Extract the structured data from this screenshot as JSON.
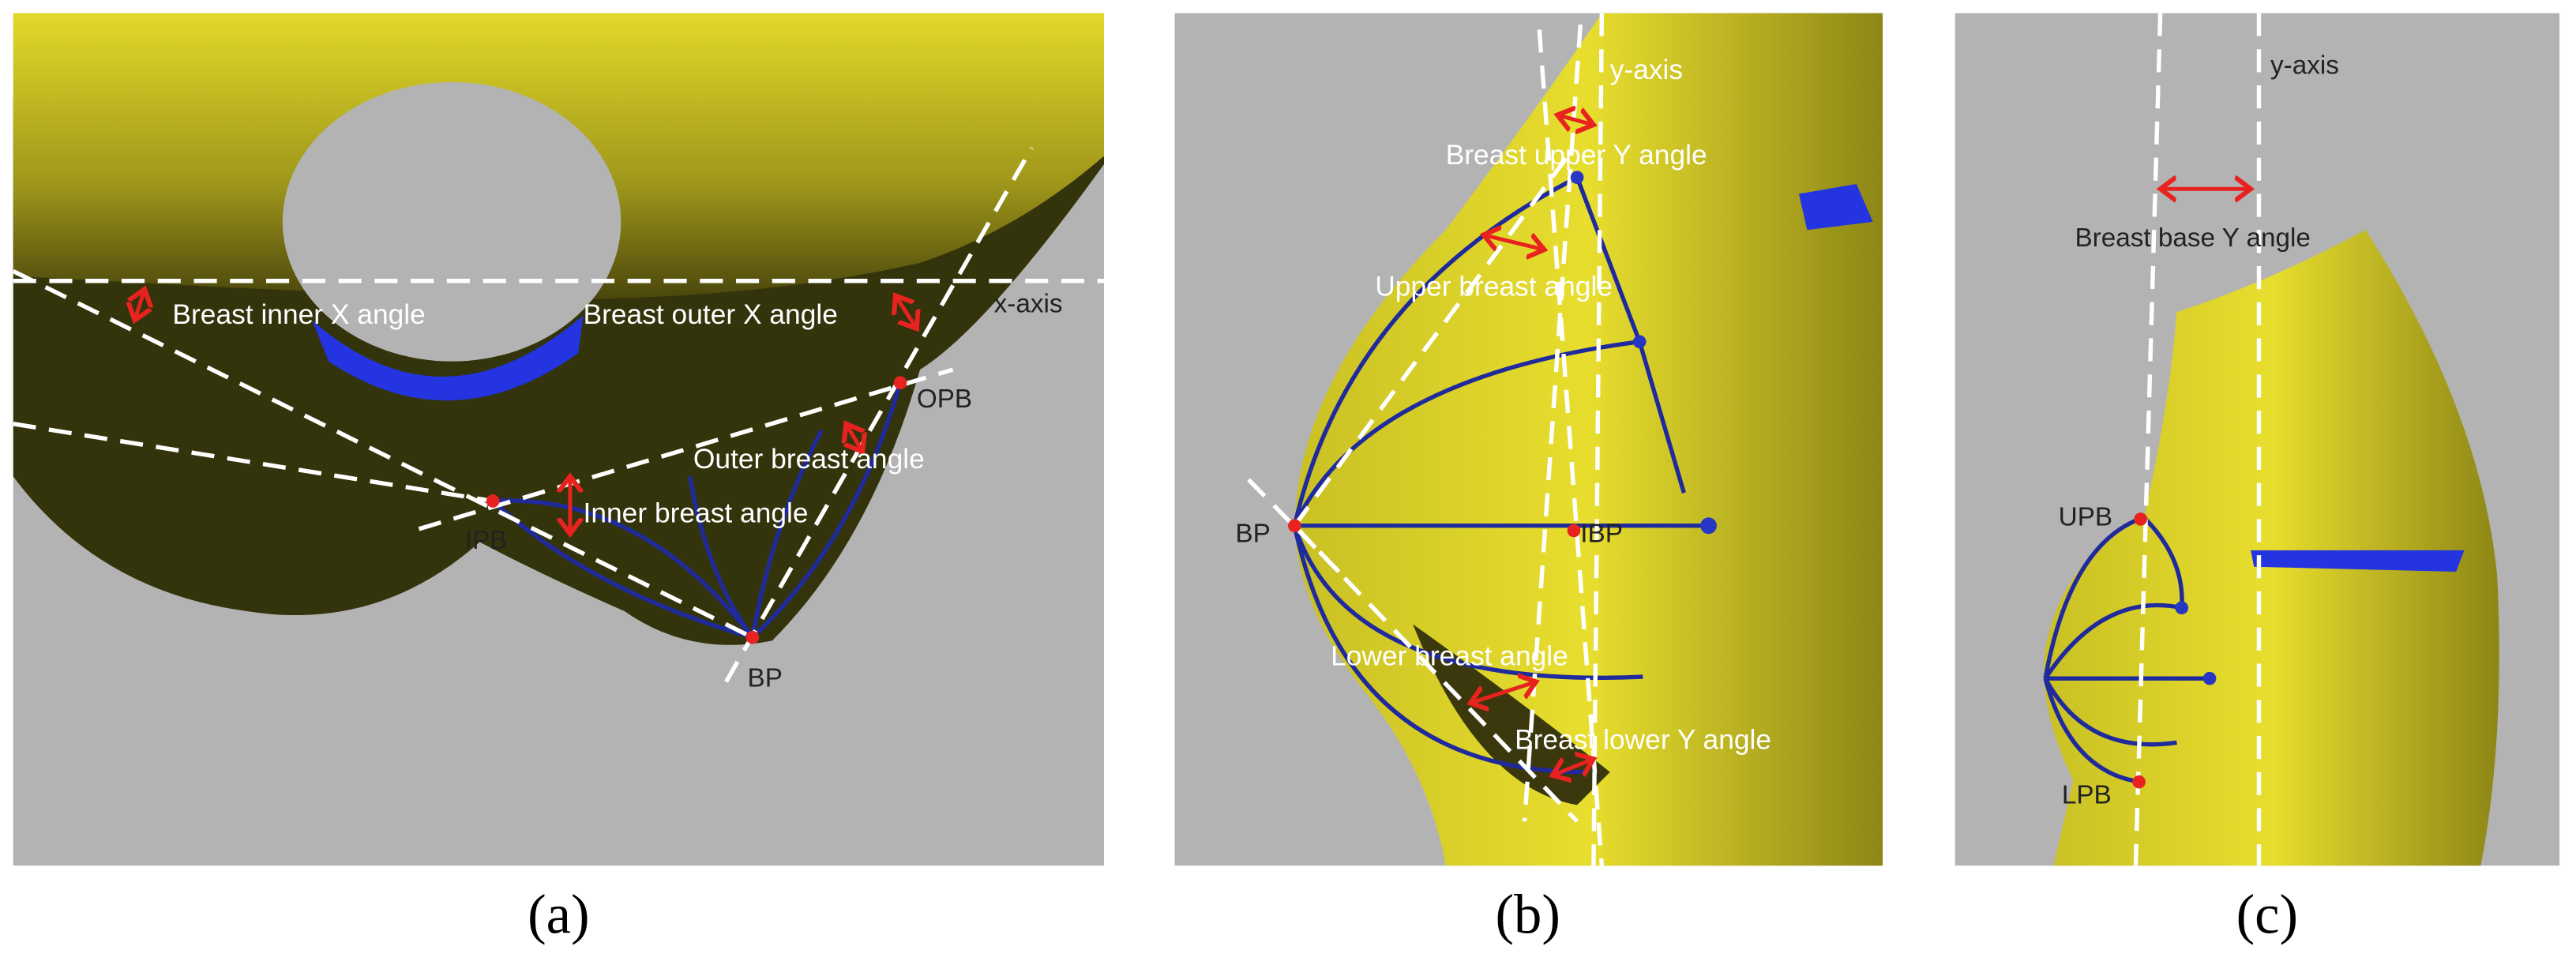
{
  "panels": [
    {
      "caption": "(a)",
      "labels": [
        "Breast inner X angle",
        "Breast outer X angle",
        "x-axis",
        "OPB",
        "Outer breast angle",
        "IPB",
        "Inner breast angle",
        "BP"
      ]
    },
    {
      "caption": "(b)",
      "labels": [
        "y-axis",
        "Breast upper Y angle",
        "Upper breast angle",
        "BP",
        "IBP",
        "Lower breast angle",
        "Breast lower Y angle"
      ]
    },
    {
      "caption": "(c)",
      "labels": [
        "y-axis",
        "Breast base Y angle",
        "UPB",
        "LPB"
      ]
    }
  ]
}
